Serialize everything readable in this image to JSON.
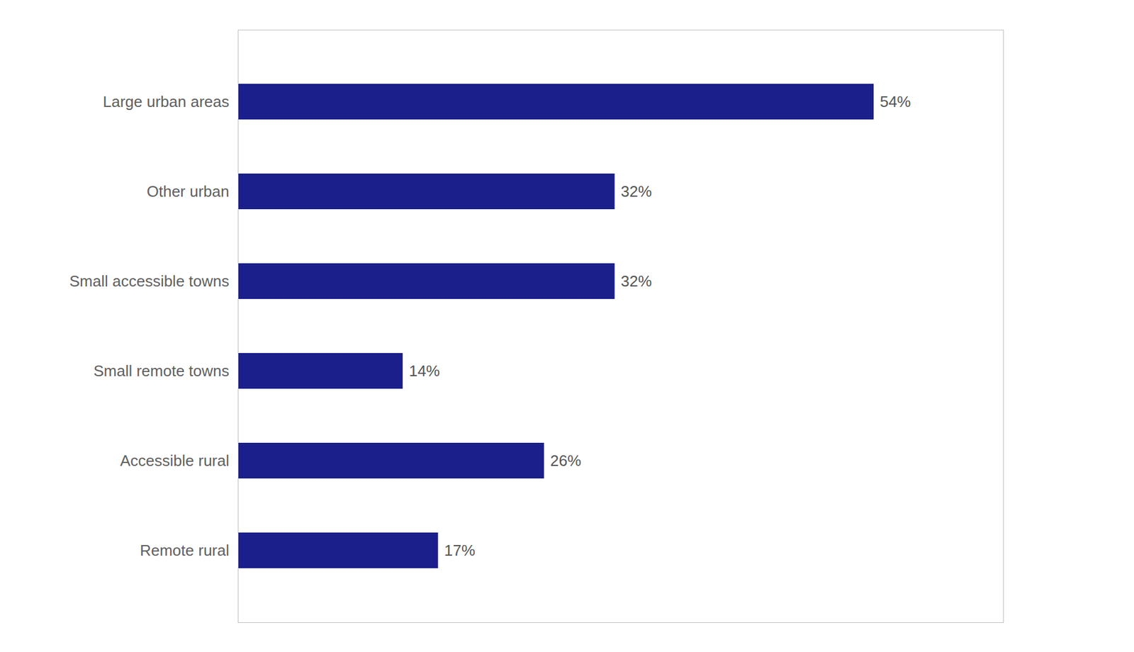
{
  "chart_data": {
    "type": "bar",
    "orientation": "horizontal",
    "categories": [
      "Large urban areas",
      "Other urban",
      "Small accessible towns",
      "Small remote towns",
      "Accessible rural",
      "Remote rural"
    ],
    "values": [
      54,
      32,
      32,
      14,
      26,
      17
    ],
    "value_labels": [
      "54%",
      "32%",
      "32%",
      "14%",
      "26%",
      "17%"
    ],
    "color": "#1a1f8c",
    "xlim": [
      0,
      65
    ],
    "data_labels": true,
    "tick_labels": "y",
    "grid": false
  }
}
